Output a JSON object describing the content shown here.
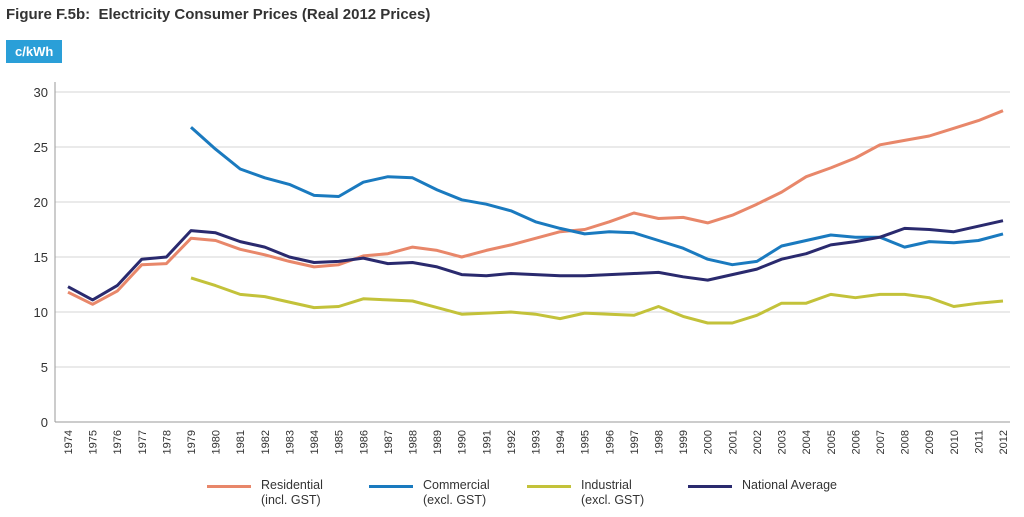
{
  "title": "Figure F.5b:  Electricity Consumer Prices (Real 2012 Prices)",
  "unit_label": "c/kWh",
  "chart_data": {
    "type": "line",
    "title": "Figure F.5b:  Electricity Consumer Prices (Real 2012 Prices)",
    "ylabel": "c/kWh",
    "xlabel": "",
    "ylim": [
      0,
      30
    ],
    "yticks": [
      "0",
      "5",
      "10",
      "15",
      "20",
      "25",
      "30"
    ],
    "grid": true,
    "legend_position": "bottom",
    "x": [
      "1974",
      "1975",
      "1976",
      "1977",
      "1978",
      "1979",
      "1980",
      "1981",
      "1982",
      "1983",
      "1984",
      "1985",
      "1986",
      "1987",
      "1988",
      "1989",
      "1990",
      "1991",
      "1992",
      "1993",
      "1994",
      "1995",
      "1996",
      "1997",
      "1998",
      "1999",
      "2000",
      "2001",
      "2002",
      "2003",
      "2004",
      "2005",
      "2006",
      "2007",
      "2008",
      "2009",
      "2010",
      "2011",
      "2012"
    ],
    "series": [
      {
        "name": "Residential",
        "sub": "(incl. GST)",
        "color": "#e8876a",
        "values": [
          11.8,
          10.7,
          11.9,
          14.3,
          14.4,
          16.7,
          16.5,
          15.7,
          15.2,
          14.6,
          14.1,
          14.3,
          15.1,
          15.3,
          15.9,
          15.6,
          15.0,
          15.6,
          16.1,
          16.7,
          17.3,
          17.5,
          18.2,
          19.0,
          18.5,
          18.6,
          18.1,
          18.8,
          19.8,
          20.9,
          22.3,
          23.1,
          24.0,
          25.2,
          25.6,
          26.0,
          26.7,
          27.4,
          28.3
        ]
      },
      {
        "name": "Commercial",
        "sub": "(excl. GST)",
        "color": "#1a7abf",
        "values": [
          null,
          null,
          null,
          null,
          null,
          26.8,
          24.8,
          23.0,
          22.2,
          21.6,
          20.6,
          20.5,
          21.8,
          22.3,
          22.2,
          21.1,
          20.2,
          19.8,
          19.2,
          18.2,
          17.6,
          17.1,
          17.3,
          17.2,
          16.5,
          15.8,
          14.8,
          14.3,
          14.6,
          16.0,
          16.5,
          17.0,
          16.8,
          16.8,
          15.9,
          16.4,
          16.3,
          16.5,
          17.1
        ]
      },
      {
        "name": "Industrial",
        "sub": "(excl. GST)",
        "color": "#c3c23a",
        "values": [
          null,
          null,
          null,
          null,
          null,
          13.1,
          12.4,
          11.6,
          11.4,
          10.9,
          10.4,
          10.5,
          11.2,
          11.1,
          11.0,
          10.4,
          9.8,
          9.9,
          10.0,
          9.8,
          9.4,
          9.9,
          9.8,
          9.7,
          10.5,
          9.6,
          9.0,
          9.0,
          9.7,
          10.8,
          10.8,
          11.6,
          11.3,
          11.6,
          11.6,
          11.3,
          10.5,
          10.8,
          11.0
        ]
      },
      {
        "name": "National Average",
        "sub": "",
        "color": "#2a2a6e",
        "values": [
          12.3,
          11.1,
          12.4,
          14.8,
          15.0,
          17.4,
          17.2,
          16.4,
          15.9,
          15.0,
          14.5,
          14.6,
          14.9,
          14.4,
          14.5,
          14.1,
          13.4,
          13.3,
          13.5,
          13.4,
          13.3,
          13.3,
          13.4,
          13.5,
          13.6,
          13.2,
          12.9,
          13.4,
          13.9,
          14.8,
          15.3,
          16.1,
          16.4,
          16.8,
          17.6,
          17.5,
          17.3,
          17.8,
          18.3
        ]
      }
    ]
  }
}
